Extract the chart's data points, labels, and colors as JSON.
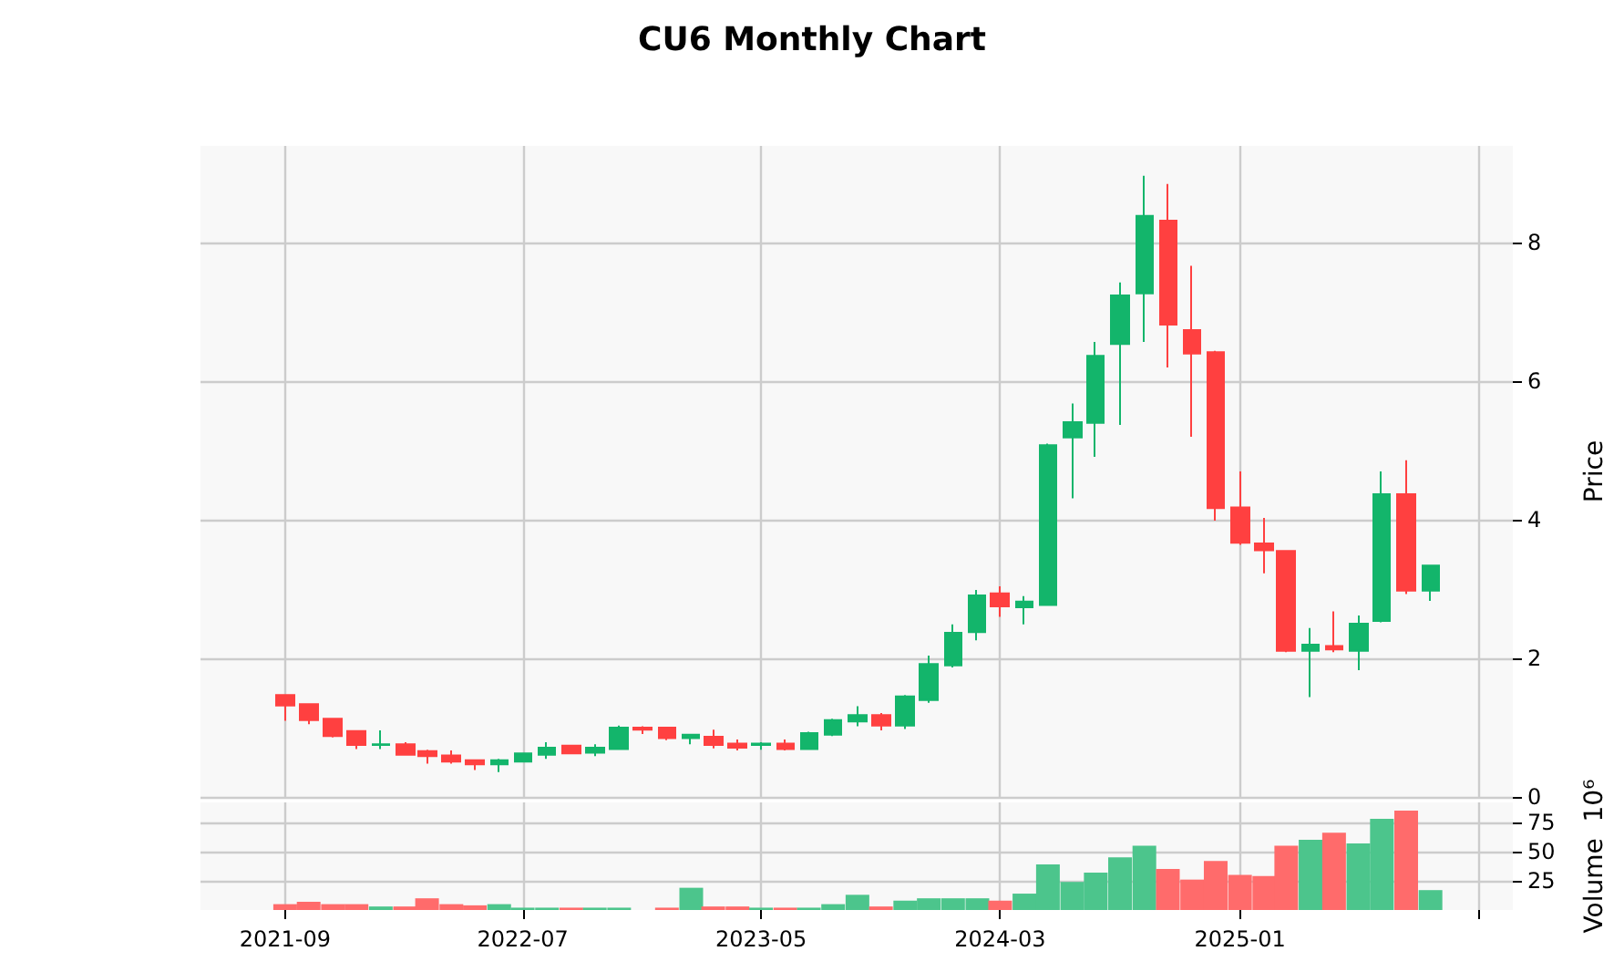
{
  "chart_data": [
    {
      "type": "candlestick",
      "title": "CU6 Monthly Chart",
      "ylabel": "Price",
      "x": [
        "2021-09",
        "2021-10",
        "2021-11",
        "2021-12",
        "2022-01",
        "2022-02",
        "2022-03",
        "2022-04",
        "2022-05",
        "2022-06",
        "2022-07",
        "2022-08",
        "2022-09",
        "2022-10",
        "2022-11",
        "2022-12",
        "2023-01",
        "2023-02",
        "2023-03",
        "2023-04",
        "2023-05",
        "2023-06",
        "2023-07",
        "2023-08",
        "2023-09",
        "2023-10",
        "2023-11",
        "2023-12",
        "2024-01",
        "2024-02",
        "2024-03",
        "2024-04",
        "2024-05",
        "2024-06",
        "2024-07",
        "2024-08",
        "2024-09",
        "2024-10",
        "2024-11",
        "2024-12",
        "2025-01",
        "2025-02",
        "2025-03",
        "2025-04",
        "2025-05",
        "2025-06",
        "2025-07",
        "2025-08",
        "2025-09"
      ],
      "ohlc": [
        [
          1.47,
          1.48,
          1.1,
          1.32
        ],
        [
          1.34,
          1.34,
          1.05,
          1.11
        ],
        [
          1.13,
          1.14,
          0.86,
          0.88
        ],
        [
          0.95,
          0.96,
          0.69,
          0.75
        ],
        [
          0.75,
          0.96,
          0.69,
          0.76
        ],
        [
          0.76,
          0.79,
          0.6,
          0.61
        ],
        [
          0.66,
          0.68,
          0.48,
          0.59
        ],
        [
          0.6,
          0.67,
          0.48,
          0.51
        ],
        [
          0.53,
          0.54,
          0.39,
          0.47
        ],
        [
          0.47,
          0.55,
          0.36,
          0.53
        ],
        [
          0.51,
          0.64,
          0.5,
          0.63
        ],
        [
          0.61,
          0.79,
          0.55,
          0.71
        ],
        [
          0.74,
          0.75,
          0.62,
          0.63
        ],
        [
          0.64,
          0.76,
          0.59,
          0.71
        ],
        [
          0.69,
          1.03,
          0.68,
          1.0
        ],
        [
          1.0,
          1.02,
          0.91,
          0.97
        ],
        [
          1.0,
          1.01,
          0.82,
          0.85
        ],
        [
          0.85,
          0.91,
          0.76,
          0.9
        ],
        [
          0.87,
          0.97,
          0.7,
          0.75
        ],
        [
          0.77,
          0.83,
          0.67,
          0.71
        ],
        [
          0.75,
          0.79,
          0.68,
          0.77
        ],
        [
          0.77,
          0.83,
          0.67,
          0.69
        ],
        [
          0.69,
          0.94,
          0.68,
          0.92
        ],
        [
          0.9,
          1.13,
          0.88,
          1.11
        ],
        [
          1.09,
          1.31,
          1.02,
          1.18
        ],
        [
          1.18,
          1.21,
          0.96,
          1.03
        ],
        [
          1.03,
          1.47,
          0.98,
          1.45
        ],
        [
          1.4,
          2.04,
          1.36,
          1.92
        ],
        [
          1.9,
          2.49,
          1.87,
          2.37
        ],
        [
          2.38,
          2.99,
          2.26,
          2.91
        ],
        [
          2.94,
          3.04,
          2.6,
          2.75
        ],
        [
          2.74,
          2.9,
          2.49,
          2.82
        ],
        [
          2.77,
          5.1,
          2.76,
          5.08
        ],
        [
          5.19,
          5.68,
          4.31,
          5.41
        ],
        [
          5.4,
          6.57,
          4.91,
          6.37
        ],
        [
          6.54,
          7.43,
          5.37,
          7.24
        ],
        [
          7.27,
          8.97,
          6.57,
          8.39
        ],
        [
          8.32,
          8.85,
          6.2,
          6.82
        ],
        [
          6.74,
          7.67,
          5.2,
          6.4
        ],
        [
          6.42,
          6.44,
          3.99,
          4.17
        ],
        [
          4.18,
          4.7,
          3.64,
          3.67
        ],
        [
          3.66,
          4.03,
          3.23,
          3.56
        ],
        [
          3.55,
          3.56,
          2.09,
          2.11
        ],
        [
          2.11,
          2.44,
          1.44,
          2.2
        ],
        [
          2.18,
          2.68,
          2.09,
          2.13
        ],
        [
          2.11,
          2.62,
          1.83,
          2.5
        ],
        [
          2.54,
          4.7,
          2.52,
          4.37
        ],
        [
          4.37,
          4.86,
          2.93,
          2.98
        ],
        [
          2.98,
          3.34,
          2.83,
          3.34
        ]
      ],
      "colors": [
        "#ff4040",
        "#ff4040",
        "#ff4040",
        "#ff4040",
        "#13b56b",
        "#ff4040",
        "#ff4040",
        "#ff4040",
        "#ff4040",
        "#13b56b",
        "#13b56b",
        "#13b56b",
        "#ff4040",
        "#13b56b",
        "#13b56b",
        "#ff4040",
        "#ff4040",
        "#13b56b",
        "#ff4040",
        "#ff4040",
        "#13b56b",
        "#ff4040",
        "#13b56b",
        "#13b56b",
        "#13b56b",
        "#ff4040",
        "#13b56b",
        "#13b56b",
        "#13b56b",
        "#13b56b",
        "#ff4040",
        "#13b56b",
        "#13b56b",
        "#13b56b",
        "#13b56b",
        "#13b56b",
        "#13b56b",
        "#ff4040",
        "#ff4040",
        "#ff4040",
        "#ff4040",
        "#ff4040",
        "#ff4040",
        "#13b56b",
        "#ff4040",
        "#13b56b",
        "#13b56b",
        "#ff4040",
        "#13b56b"
      ],
      "xlim": [
        "2021-05-16",
        "2025-12-15"
      ],
      "xticks": [
        "2021-09",
        "2022-07",
        "2023-05",
        "2024-03",
        "2025-01",
        {
          "value": "2025-11",
          "label": null
        }
      ],
      "ylim": [
        0,
        9.4
      ],
      "yticks": [
        0,
        2,
        4,
        6,
        8
      ],
      "grid": true,
      "tick_labels": "y"
    },
    {
      "type": "bar",
      "ylabel": "Volume  10⁶",
      "x": [
        "2021-09",
        "2021-10",
        "2021-11",
        "2021-12",
        "2022-01",
        "2022-02",
        "2022-03",
        "2022-04",
        "2022-05",
        "2022-06",
        "2022-07",
        "2022-08",
        "2022-09",
        "2022-10",
        "2022-11",
        "2022-12",
        "2023-01",
        "2023-02",
        "2023-03",
        "2023-04",
        "2023-05",
        "2023-06",
        "2023-07",
        "2023-08",
        "2023-09",
        "2023-10",
        "2023-11",
        "2023-12",
        "2024-01",
        "2024-02",
        "2024-03",
        "2024-04",
        "2024-05",
        "2024-06",
        "2024-07",
        "2024-08",
        "2024-09",
        "2024-10",
        "2024-11",
        "2024-12",
        "2025-01",
        "2025-02",
        "2025-03",
        "2025-04",
        "2025-05",
        "2025-06",
        "2025-07",
        "2025-08",
        "2025-09"
      ],
      "values": [
        5,
        7,
        5,
        5,
        3,
        3,
        10,
        5,
        4,
        5,
        2,
        2,
        2,
        2,
        2,
        0,
        2,
        19,
        3,
        3,
        2,
        2,
        2,
        5,
        13,
        3,
        8,
        10,
        10,
        10,
        8,
        14,
        39,
        24,
        32,
        45,
        55,
        35,
        26,
        42,
        30,
        29,
        55,
        60,
        66,
        57,
        78,
        85,
        17
      ],
      "colors": [
        "#ff6b6b",
        "#ff6b6b",
        "#ff6b6b",
        "#ff6b6b",
        "#4cc58c",
        "#ff6b6b",
        "#ff6b6b",
        "#ff6b6b",
        "#ff6b6b",
        "#4cc58c",
        "#4cc58c",
        "#4cc58c",
        "#ff6b6b",
        "#4cc58c",
        "#4cc58c",
        "#ff6b6b",
        "#ff6b6b",
        "#4cc58c",
        "#ff6b6b",
        "#ff6b6b",
        "#4cc58c",
        "#ff6b6b",
        "#4cc58c",
        "#4cc58c",
        "#4cc58c",
        "#ff6b6b",
        "#4cc58c",
        "#4cc58c",
        "#4cc58c",
        "#4cc58c",
        "#ff6b6b",
        "#4cc58c",
        "#4cc58c",
        "#4cc58c",
        "#4cc58c",
        "#4cc58c",
        "#4cc58c",
        "#ff6b6b",
        "#ff6b6b",
        "#ff6b6b",
        "#ff6b6b",
        "#ff6b6b",
        "#ff6b6b",
        "#4cc58c",
        "#ff6b6b",
        "#4cc58c",
        "#4cc58c",
        "#ff6b6b",
        "#4cc58c"
      ],
      "xlim": [
        "2021-05-16",
        "2025-12-15"
      ],
      "xticks": [
        "2021-09",
        "2022-07",
        "2023-05",
        "2024-03",
        "2025-01",
        {
          "value": "2025-11",
          "label": null
        }
      ],
      "ylim": [
        0,
        92
      ],
      "yticks": [
        {
          "value": 25,
          "label": "25"
        },
        {
          "value": 50,
          "label": "50"
        },
        {
          "value": 75,
          "label": "75"
        }
      ],
      "grid": true
    }
  ]
}
